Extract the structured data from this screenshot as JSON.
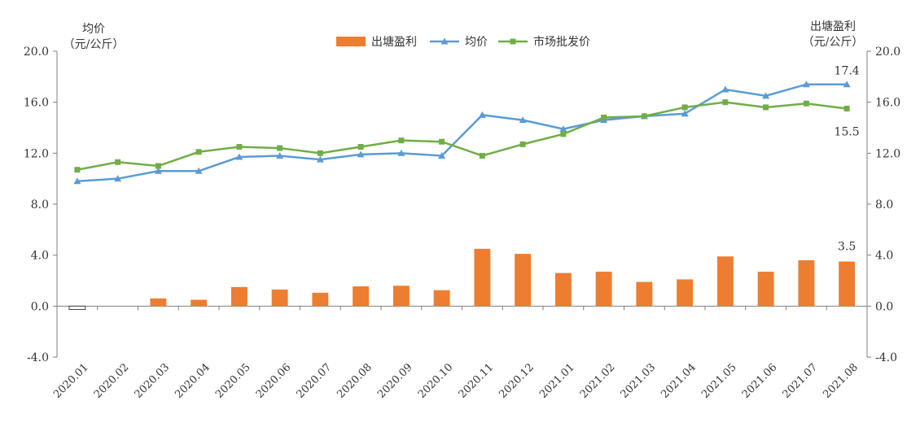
{
  "chart_data": {
    "type": "bar+line",
    "categories": [
      "2020.01",
      "2020.02",
      "2020.03",
      "2020.04",
      "2020.05",
      "2020.06",
      "2020.07",
      "2020.08",
      "2020.09",
      "2020.10",
      "2020.11",
      "2020.12",
      "2021.01",
      "2021.02",
      "2021.03",
      "2021.04",
      "2021.05",
      "2021.06",
      "2021.07",
      "2021.08"
    ],
    "left_axis": {
      "title_line1": "均价",
      "title_line2": "（元/公斤）",
      "ylim": [
        -4,
        20
      ],
      "ticks": [
        "20.0",
        "16.0",
        "12.0",
        "8.0",
        "4.0",
        "0.0",
        "-4.0"
      ]
    },
    "right_axis": {
      "title_line1": "出塘盈利",
      "title_line2": "（元/公斤）",
      "ylim": [
        -4,
        20
      ],
      "ticks": [
        "20.0",
        "16.0",
        "12.0",
        "8.0",
        "4.0",
        "0.0",
        "-4.0"
      ]
    },
    "series": [
      {
        "name": "出塘盈利",
        "kind": "bar",
        "axis": "right",
        "color": "#ED7D31",
        "values": [
          -0.2,
          0.0,
          0.6,
          0.5,
          1.5,
          1.3,
          1.05,
          1.55,
          1.6,
          1.25,
          4.5,
          4.1,
          2.6,
          2.7,
          1.9,
          2.1,
          3.9,
          2.7,
          3.6,
          3.5
        ]
      },
      {
        "name": "均价",
        "kind": "line",
        "marker": "triangle",
        "axis": "left",
        "color": "#5B9BD5",
        "values": [
          9.8,
          10.0,
          10.6,
          10.6,
          11.7,
          11.8,
          11.5,
          11.9,
          12.0,
          11.8,
          15.0,
          14.6,
          13.9,
          14.6,
          14.9,
          15.1,
          17.0,
          16.5,
          17.4,
          17.4
        ]
      },
      {
        "name": "市场批发价",
        "kind": "line",
        "marker": "square",
        "axis": "left",
        "color": "#70AD47",
        "values": [
          10.7,
          11.3,
          11.0,
          12.1,
          12.5,
          12.4,
          12.0,
          12.5,
          13.0,
          12.9,
          11.8,
          12.7,
          13.5,
          14.8,
          14.9,
          15.6,
          16.0,
          15.6,
          15.9,
          15.5
        ]
      }
    ],
    "annotations": [
      {
        "text": "17.4",
        "series": "均价",
        "index": 19
      },
      {
        "text": "15.5",
        "series": "市场批发价",
        "index": 19
      },
      {
        "text": "3.5",
        "series": "出塘盈利",
        "index": 19
      }
    ],
    "legend": "top-center",
    "grid": false
  }
}
